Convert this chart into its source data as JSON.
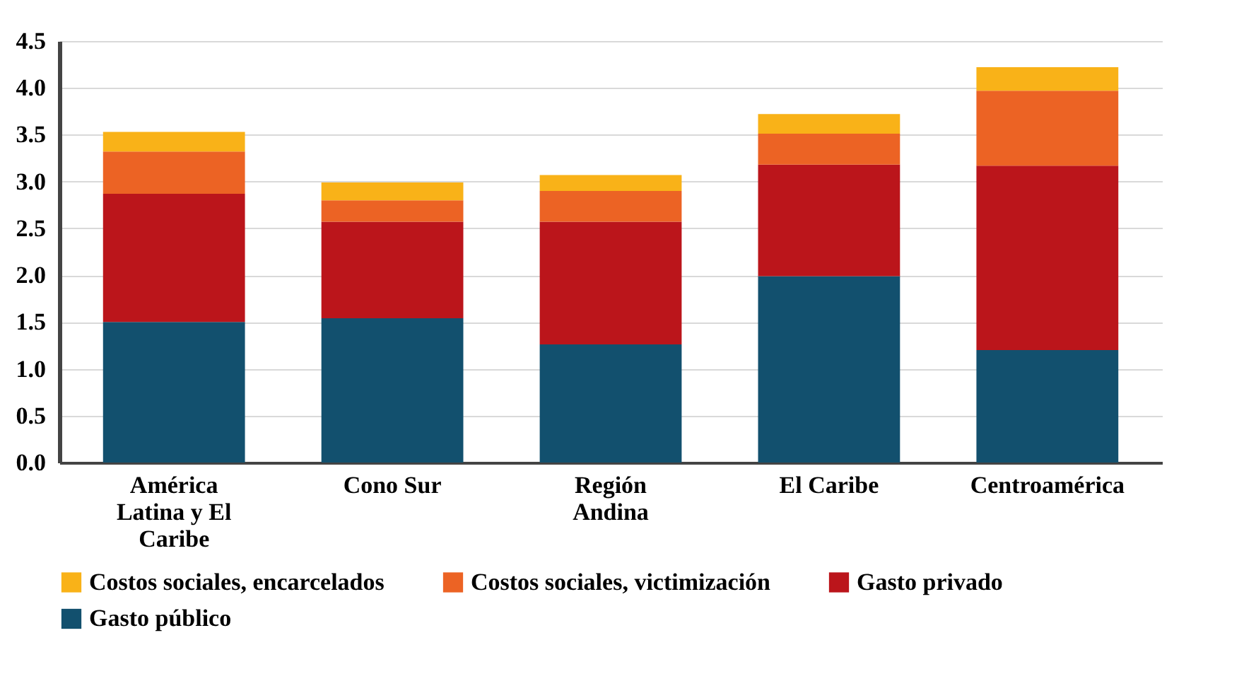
{
  "chart_data": {
    "type": "bar",
    "stacked": true,
    "categories": [
      "América Latina y El Caribe",
      "Cono Sur",
      "Región Andina",
      "El Caribe",
      "Centroamérica"
    ],
    "series": [
      {
        "name": "Gasto público",
        "color": "#12506e",
        "values": [
          1.5,
          1.54,
          1.26,
          1.99,
          1.2
        ]
      },
      {
        "name": "Gasto privado",
        "color": "#bb151b",
        "values": [
          1.37,
          1.03,
          1.31,
          1.19,
          1.97
        ]
      },
      {
        "name": "Costos sociales, victimización",
        "color": "#ec6324",
        "values": [
          0.45,
          0.23,
          0.33,
          0.33,
          0.8
        ]
      },
      {
        "name": "Costos sociales, encarcelados",
        "color": "#f9b218",
        "values": [
          0.21,
          0.19,
          0.17,
          0.21,
          0.25
        ]
      }
    ],
    "ylim": [
      0,
      4.5
    ],
    "yticks": [
      {
        "value": 0,
        "label": "0.0"
      },
      0.5,
      {
        "value": 1,
        "label": "1.0"
      },
      1.5,
      {
        "value": 2,
        "label": "2.0"
      },
      2.5,
      {
        "value": 3,
        "label": "3.0"
      },
      3.5,
      {
        "value": 4,
        "label": "4.0"
      },
      4.5
    ],
    "grid": "y",
    "legend": "bottom"
  }
}
